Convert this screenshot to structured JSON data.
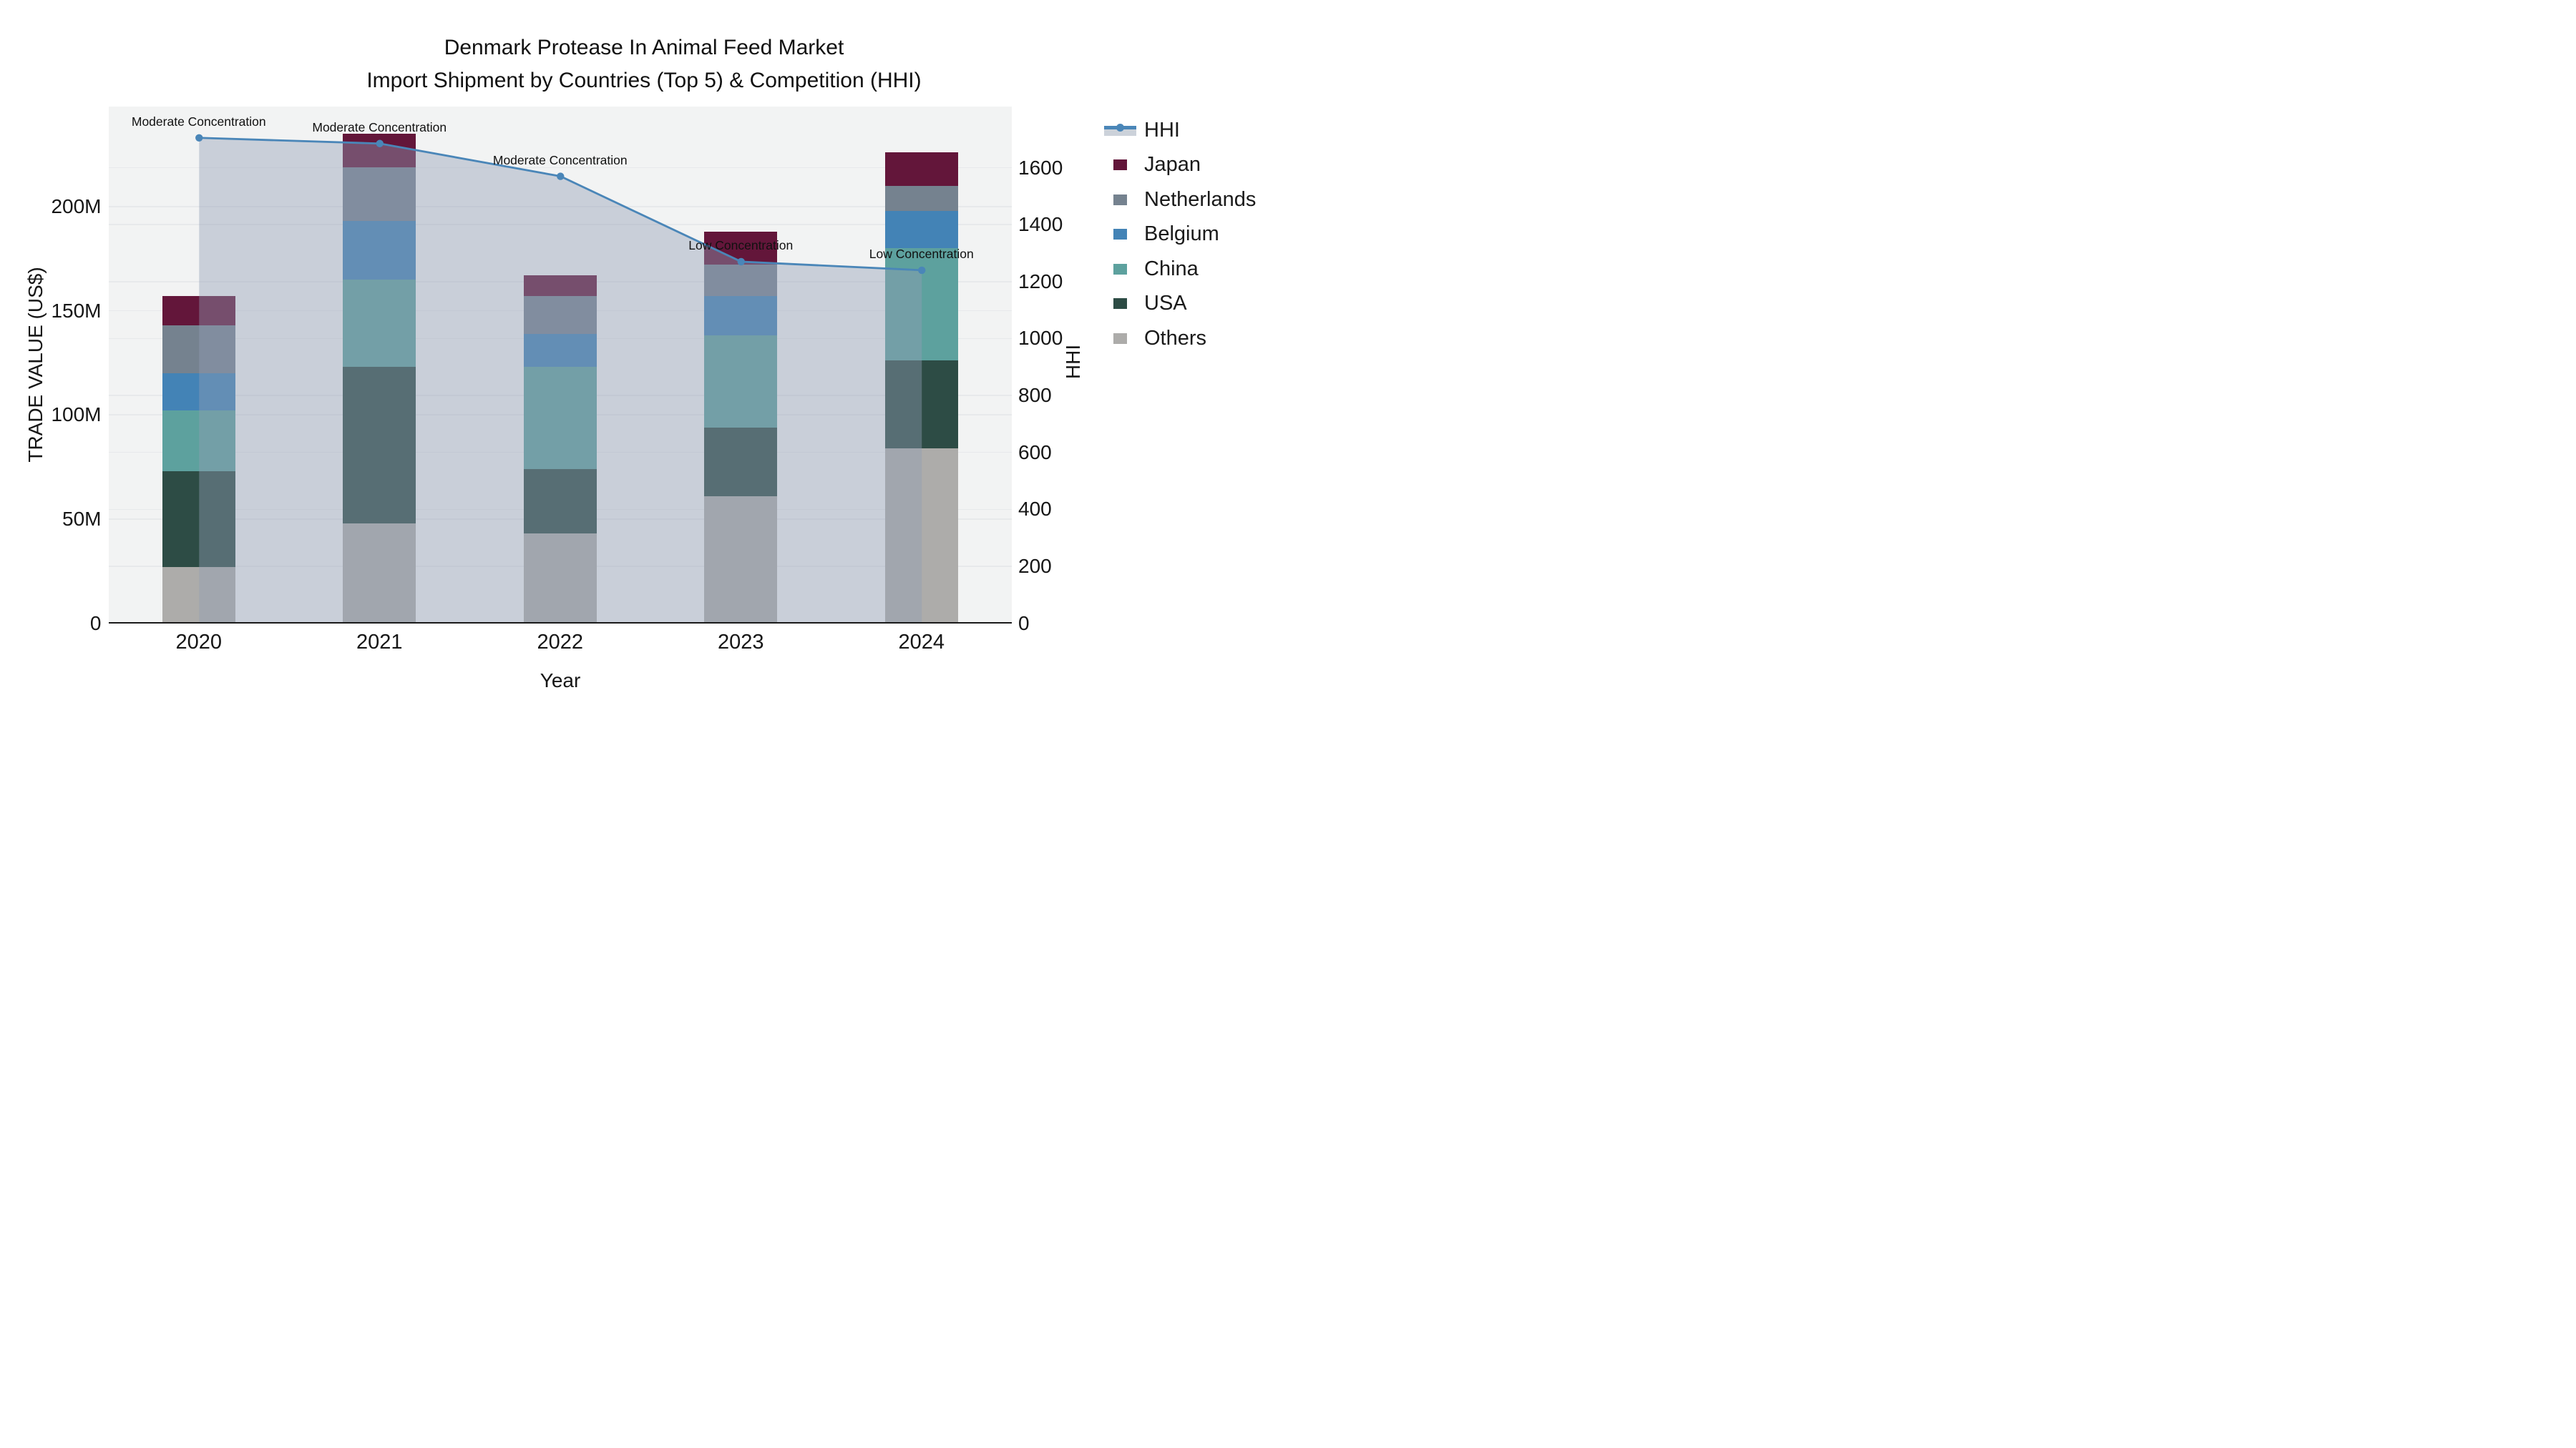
{
  "title": {
    "line1": "Denmark Protease In Animal Feed Market",
    "line2": "Import Shipment by Countries (Top 5) & Competition (HHI)"
  },
  "legend_order": [
    "HHI",
    "Japan",
    "Netherlands",
    "Belgium",
    "China",
    "USA",
    "Others"
  ],
  "chart_data": {
    "type": "bar",
    "stacked": true,
    "subtype": "stacked bars with HHI line overlay (secondary axis) and area fill under line",
    "categories": [
      "2020",
      "2021",
      "2022",
      "2023",
      "2024"
    ],
    "series": [
      {
        "name": "Others",
        "color": "#adacaa",
        "values": [
          27,
          48,
          43,
          61,
          84
        ]
      },
      {
        "name": "USA",
        "color": "#2d4c45",
        "values": [
          46,
          75,
          31,
          33,
          42
        ]
      },
      {
        "name": "China",
        "color": "#5da19e",
        "values": [
          29,
          42,
          49,
          44,
          54
        ]
      },
      {
        "name": "Belgium",
        "color": "#4383b6",
        "values": [
          18,
          28,
          16,
          19,
          18
        ]
      },
      {
        "name": "Netherlands",
        "color": "#75828f",
        "values": [
          23,
          26,
          18,
          15,
          12
        ]
      },
      {
        "name": "Japan",
        "color": "#63163a",
        "values": [
          14,
          16,
          10,
          16,
          16
        ]
      }
    ],
    "line": {
      "name": "HHI",
      "color": "#4a86b8",
      "fill_color": "rgba(145,157,180,0.42)",
      "values": [
        1705,
        1685,
        1570,
        1270,
        1240
      ]
    },
    "annotations": [
      "Moderate Concentration",
      "Moderate Concentration",
      "Moderate Concentration",
      "Low Concentration",
      "Low Concentration"
    ],
    "left_axis": {
      "title": "TRADE VALUE (US$)",
      "unit": "M US$",
      "max": 248,
      "ticks": [
        {
          "v": 0,
          "label": "0"
        },
        {
          "v": 50,
          "label": "50M"
        },
        {
          "v": 100,
          "label": "100M"
        },
        {
          "v": 150,
          "label": "150M"
        },
        {
          "v": 200,
          "label": "200M"
        }
      ]
    },
    "right_axis": {
      "title": "HHI",
      "max": 1815,
      "ticks": [
        {
          "v": 0,
          "label": "0"
        },
        {
          "v": 200,
          "label": "200"
        },
        {
          "v": 400,
          "label": "400"
        },
        {
          "v": 600,
          "label": "600"
        },
        {
          "v": 800,
          "label": "800"
        },
        {
          "v": 1000,
          "label": "1000"
        },
        {
          "v": 1200,
          "label": "1200"
        },
        {
          "v": 1400,
          "label": "1400"
        },
        {
          "v": 1600,
          "label": "1600"
        }
      ]
    },
    "x_axis": {
      "title": "Year"
    },
    "plot_bg": "#f2f3f3",
    "grid_color": "#e7e9eb",
    "axis_line_color": "#1a1a1a"
  }
}
